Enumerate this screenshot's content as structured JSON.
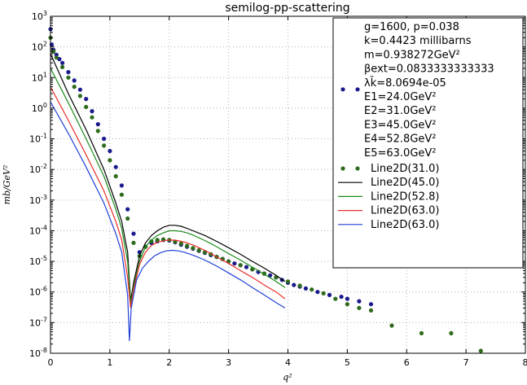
{
  "chart_data": {
    "type": "line",
    "title": "semilog-pp-scattering",
    "xlabel": "q²",
    "ylabel": "mb/GeV²",
    "xlim": [
      0,
      8
    ],
    "ylim": [
      1e-08,
      1000
    ],
    "yscale": "log",
    "grid": true,
    "legend_placement": "top-right",
    "x_ticks": [
      "0",
      "1",
      "2",
      "3",
      "4",
      "5",
      "6",
      "7",
      "8"
    ],
    "y_ticks": [
      {
        "base": "10",
        "exp": "-8",
        "value": 1e-08
      },
      {
        "base": "10",
        "exp": "-7",
        "value": 1e-07
      },
      {
        "base": "10",
        "exp": "-6",
        "value": 1e-06
      },
      {
        "base": "10",
        "exp": "-5",
        "value": 1e-05
      },
      {
        "base": "10",
        "exp": "-4",
        "value": 0.0001
      },
      {
        "base": "10",
        "exp": "-3",
        "value": 0.001
      },
      {
        "base": "10",
        "exp": "-2",
        "value": 0.01
      },
      {
        "base": "10",
        "exp": "-1",
        "value": 0.1
      },
      {
        "base": "10",
        "exp": "0",
        "value": 1
      },
      {
        "base": "10",
        "exp": "1",
        "value": 10
      },
      {
        "base": "10",
        "exp": "2",
        "value": 100
      },
      {
        "base": "10",
        "exp": "3",
        "value": 1000
      }
    ],
    "legend_text": [
      "g=1600, p=0.038",
      "k=0.4423 millibarns",
      "m=0.938272GeV²",
      "βext=0.0833333333333",
      "λk̄=8.0694e-05",
      "E1=24.0GeV²",
      "E2=31.0GeV²",
      "E3=45.0GeV²",
      "E4=52.8GeV²",
      "E5=63.0GeV²"
    ],
    "series": [
      {
        "name": "E1=24.0GeV²",
        "kind": "scatter",
        "color": "#1a1a8c",
        "points": [
          [
            0.0,
            380
          ],
          [
            0.02,
            120
          ],
          [
            0.05,
            80
          ],
          [
            0.1,
            55
          ],
          [
            0.15,
            40
          ],
          [
            0.2,
            30
          ],
          [
            0.3,
            15
          ],
          [
            0.4,
            8
          ],
          [
            0.5,
            4
          ],
          [
            0.6,
            2
          ],
          [
            0.7,
            0.8
          ],
          [
            0.8,
            0.3
          ],
          [
            0.9,
            0.1
          ],
          [
            1.0,
            0.04
          ],
          [
            1.1,
            0.012
          ],
          [
            1.2,
            0.003
          ],
          [
            1.3,
            0.0005
          ],
          [
            1.4,
            8e-05
          ],
          [
            1.5,
            2e-05
          ],
          [
            1.6,
            3e-05
          ],
          [
            1.7,
            4e-05
          ],
          [
            1.8,
            4.5e-05
          ],
          [
            1.9,
            5e-05
          ],
          [
            2.0,
            4.8e-05
          ],
          [
            2.1,
            4.2e-05
          ],
          [
            2.2,
            3.5e-05
          ],
          [
            2.3,
            3e-05
          ],
          [
            2.4,
            2.6e-05
          ],
          [
            2.5,
            2.2e-05
          ],
          [
            2.6,
            1.9e-05
          ],
          [
            2.7,
            1.6e-05
          ],
          [
            2.8,
            1.4e-05
          ],
          [
            2.9,
            1.2e-05
          ],
          [
            3.0,
            1e-05
          ],
          [
            3.1,
            8.5e-06
          ],
          [
            3.2,
            7.5e-06
          ],
          [
            3.3,
            6.5e-06
          ],
          [
            3.4,
            5.5e-06
          ],
          [
            3.5,
            4.5e-06
          ],
          [
            3.6,
            4e-06
          ],
          [
            3.7,
            3.5e-06
          ],
          [
            3.8,
            3e-06
          ],
          [
            3.9,
            2.5e-06
          ],
          [
            4.0,
            2e-06
          ],
          [
            4.1,
            1.7e-06
          ],
          [
            4.2,
            1.5e-06
          ],
          [
            4.3,
            1.3e-06
          ],
          [
            4.5,
            1e-06
          ],
          [
            4.7,
            8e-07
          ],
          [
            4.9,
            7e-07
          ],
          [
            5.0,
            6e-07
          ],
          [
            5.2,
            5e-07
          ],
          [
            5.4,
            4e-07
          ]
        ]
      },
      {
        "name": "Line2D(31.0)",
        "kind": "scatter",
        "color": "#2e6b1c",
        "points": [
          [
            0.0,
            200
          ],
          [
            0.05,
            70
          ],
          [
            0.1,
            45
          ],
          [
            0.2,
            22
          ],
          [
            0.3,
            10
          ],
          [
            0.4,
            5
          ],
          [
            0.5,
            2.5
          ],
          [
            0.6,
            1.1
          ],
          [
            0.7,
            0.5
          ],
          [
            0.8,
            0.18
          ],
          [
            0.9,
            0.06
          ],
          [
            1.0,
            0.02
          ],
          [
            1.1,
            0.006
          ],
          [
            1.2,
            0.0015
          ],
          [
            1.3,
            0.00025
          ],
          [
            1.4,
            4e-05
          ],
          [
            1.5,
            1.5e-05
          ],
          [
            1.6,
            3e-05
          ],
          [
            1.7,
            4.5e-05
          ],
          [
            1.8,
            5e-05
          ],
          [
            1.9,
            5.2e-05
          ],
          [
            2.0,
            5e-05
          ],
          [
            2.1,
            4.4e-05
          ],
          [
            2.2,
            3.8e-05
          ],
          [
            2.3,
            3.2e-05
          ],
          [
            2.4,
            2.7e-05
          ],
          [
            2.5,
            2.3e-05
          ],
          [
            2.6,
            2e-05
          ],
          [
            2.7,
            1.7e-05
          ],
          [
            2.8,
            1.4e-05
          ],
          [
            2.9,
            1.2e-05
          ],
          [
            3.0,
            1e-05
          ],
          [
            3.2,
            7.5e-06
          ],
          [
            3.4,
            5.5e-06
          ],
          [
            3.6,
            4e-06
          ],
          [
            3.8,
            3e-06
          ],
          [
            4.0,
            2.2e-06
          ],
          [
            4.2,
            1.6e-06
          ],
          [
            4.4,
            1.2e-06
          ],
          [
            4.6,
            9e-07
          ],
          [
            4.8,
            6e-07
          ],
          [
            5.0,
            4e-07
          ],
          [
            5.2,
            3e-07
          ],
          [
            5.4,
            2.5e-07
          ],
          [
            5.75,
            8e-08
          ],
          [
            6.25,
            4.5e-08
          ],
          [
            6.75,
            4.5e-08
          ],
          [
            7.25,
            1.2e-08
          ]
        ]
      },
      {
        "name": "Line2D(45.0)",
        "kind": "line",
        "color": "#000000",
        "points": [
          [
            0.0,
            60
          ],
          [
            0.3,
            3
          ],
          [
            0.6,
            0.2
          ],
          [
            0.9,
            0.01
          ],
          [
            1.1,
            0.0008
          ],
          [
            1.2,
            0.0002
          ],
          [
            1.3,
            2e-05
          ],
          [
            1.35,
            5e-07
          ],
          [
            1.4,
            2e-06
          ],
          [
            1.5,
            1.5e-05
          ],
          [
            1.6,
            4e-05
          ],
          [
            1.7,
            7e-05
          ],
          [
            1.8,
            0.0001
          ],
          [
            1.9,
            0.00013
          ],
          [
            2.0,
            0.00015
          ],
          [
            2.1,
            0.00015
          ],
          [
            2.2,
            0.00014
          ],
          [
            2.3,
            0.00012
          ],
          [
            2.4,
            0.0001
          ],
          [
            2.6,
            7e-05
          ],
          [
            2.8,
            4.5e-05
          ],
          [
            3.0,
            2.8e-05
          ],
          [
            3.2,
            1.7e-05
          ],
          [
            3.4,
            1e-05
          ],
          [
            3.6,
            6e-06
          ],
          [
            3.8,
            3.5e-06
          ],
          [
            3.95,
            2.2e-06
          ]
        ]
      },
      {
        "name": "Line2D(52.8)",
        "kind": "line",
        "color": "#1a8c1a",
        "points": [
          [
            0.0,
            20
          ],
          [
            0.3,
            1.5
          ],
          [
            0.6,
            0.1
          ],
          [
            0.9,
            0.006
          ],
          [
            1.1,
            0.0005
          ],
          [
            1.2,
            0.00012
          ],
          [
            1.3,
            1e-05
          ],
          [
            1.35,
            4e-07
          ],
          [
            1.4,
            1.5e-06
          ],
          [
            1.5,
            1e-05
          ],
          [
            1.6,
            3e-05
          ],
          [
            1.7,
            5e-05
          ],
          [
            1.8,
            7e-05
          ],
          [
            1.9,
            8.5e-05
          ],
          [
            2.0,
            0.0001
          ],
          [
            2.1,
            0.0001
          ],
          [
            2.2,
            9.5e-05
          ],
          [
            2.3,
            8.5e-05
          ],
          [
            2.4,
            7.2e-05
          ],
          [
            2.6,
            4.8e-05
          ],
          [
            2.8,
            3e-05
          ],
          [
            3.0,
            1.8e-05
          ],
          [
            3.2,
            1.1e-05
          ],
          [
            3.4,
            6.5e-06
          ],
          [
            3.6,
            3.8e-06
          ],
          [
            3.8,
            2.2e-06
          ],
          [
            3.95,
            1.4e-06
          ]
        ]
      },
      {
        "name": "Line2D(63.0)",
        "kind": "line",
        "color": "#e8302a",
        "points": [
          [
            0.0,
            5
          ],
          [
            0.3,
            0.4
          ],
          [
            0.6,
            0.03
          ],
          [
            0.9,
            0.002
          ],
          [
            1.1,
            0.0002
          ],
          [
            1.2,
            5e-05
          ],
          [
            1.3,
            3e-06
          ],
          [
            1.35,
            3e-07
          ],
          [
            1.4,
            1.2e-06
          ],
          [
            1.5,
            8e-06
          ],
          [
            1.6,
            2e-05
          ],
          [
            1.7,
            3.3e-05
          ],
          [
            1.8,
            4.2e-05
          ],
          [
            1.9,
            4.7e-05
          ],
          [
            2.0,
            5e-05
          ],
          [
            2.1,
            4.9e-05
          ],
          [
            2.2,
            4.5e-05
          ],
          [
            2.3,
            4e-05
          ],
          [
            2.4,
            3.4e-05
          ],
          [
            2.6,
            2.3e-05
          ],
          [
            2.8,
            1.4e-05
          ],
          [
            3.0,
            8.5e-06
          ],
          [
            3.2,
            5e-06
          ],
          [
            3.4,
            3e-06
          ],
          [
            3.6,
            1.7e-06
          ],
          [
            3.8,
            1e-06
          ],
          [
            3.95,
            6e-07
          ]
        ]
      },
      {
        "name": "Line2D(63.0)",
        "kind": "line",
        "color": "#1f3fd9",
        "points": [
          [
            0.0,
            1.6
          ],
          [
            0.3,
            0.15
          ],
          [
            0.6,
            0.012
          ],
          [
            0.9,
            0.0008
          ],
          [
            1.1,
            8e-05
          ],
          [
            1.2,
            2e-05
          ],
          [
            1.3,
            8e-07
          ],
          [
            1.33,
            2.5e-08
          ],
          [
            1.36,
            3e-07
          ],
          [
            1.45,
            2.5e-06
          ],
          [
            1.55,
            6e-06
          ],
          [
            1.65,
            1e-05
          ],
          [
            1.75,
            1.5e-05
          ],
          [
            1.85,
            1.9e-05
          ],
          [
            1.95,
            2.2e-05
          ],
          [
            2.05,
            2.3e-05
          ],
          [
            2.15,
            2.2e-05
          ],
          [
            2.25,
            2e-05
          ],
          [
            2.4,
            1.6e-05
          ],
          [
            2.6,
            1.1e-05
          ],
          [
            2.8,
            7e-06
          ],
          [
            3.0,
            4.2e-06
          ],
          [
            3.2,
            2.5e-06
          ],
          [
            3.4,
            1.4e-06
          ],
          [
            3.6,
            8e-07
          ],
          [
            3.8,
            4.5e-07
          ],
          [
            3.95,
            3e-07
          ]
        ]
      }
    ]
  }
}
